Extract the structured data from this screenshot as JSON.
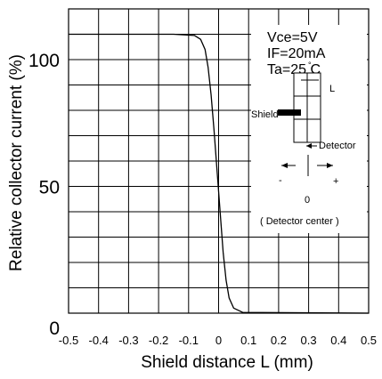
{
  "chart_data": {
    "type": "line",
    "title": "",
    "xlabel": "Shield distance L (mm)",
    "ylabel": "Relative collector current (%)",
    "xlim": [
      -0.5,
      0.5
    ],
    "ylim": [
      0,
      120
    ],
    "x_ticks": [
      -0.5,
      -0.4,
      -0.3,
      -0.2,
      -0.1,
      0,
      0.1,
      0.2,
      0.3,
      0.4,
      0.5
    ],
    "x_tick_labels": [
      "-0.5",
      "-0.4",
      "-0.3",
      "-0.2",
      "-0.1",
      "0",
      "0.1",
      "0.2",
      "0.3",
      "0.4",
      "0.5"
    ],
    "y_ticks": [
      0,
      50,
      100
    ],
    "y_tick_labels": [
      "0",
      "50",
      "100"
    ],
    "grid": true,
    "grid_y_step": 10,
    "grid_x_step": 0.1,
    "series": [
      {
        "color": "#000000",
        "x": [
          -0.5,
          -0.15,
          -0.08,
          -0.06,
          -0.045,
          -0.035,
          -0.025,
          -0.015,
          -0.005,
          0.005,
          0.015,
          0.025,
          0.035,
          0.05,
          0.08,
          0.5
        ],
        "y": [
          110,
          110,
          109.5,
          108,
          104,
          97,
          86,
          72,
          56,
          40,
          24,
          13,
          6,
          2,
          0.3,
          0
        ]
      }
    ],
    "conditions": [
      "Vce=5V",
      "IF=20mA",
      "Ta=25 C"
    ],
    "degree_mark": "°",
    "inset": {
      "L_label": "L",
      "shield_label": "Shield",
      "detector_label": "Detector",
      "minus_label": "-",
      "plus_label": "+",
      "zero_label": "0",
      "center_caption": "( Detector center )"
    }
  }
}
